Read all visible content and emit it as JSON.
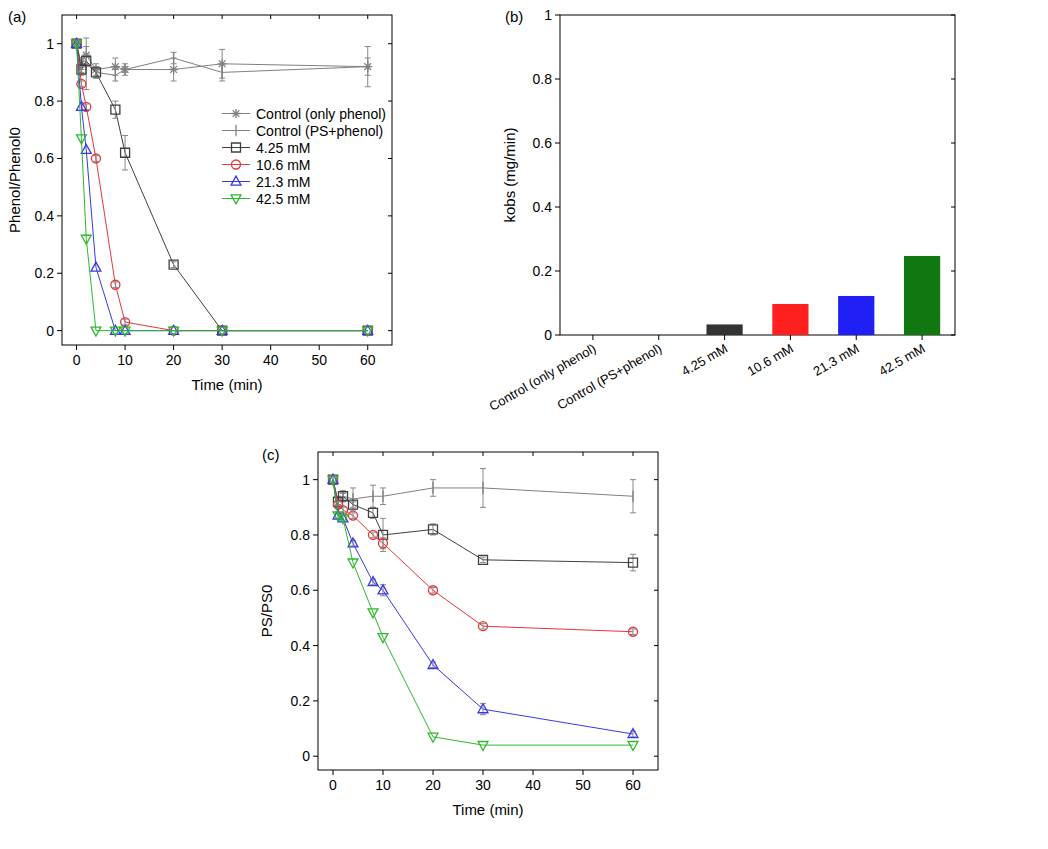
{
  "chart_data": [
    {
      "type": "line",
      "title": "(a)",
      "xlabel": "Time (min)",
      "ylabel": "Phenol/Phenol0",
      "x": [
        0,
        1,
        2,
        4,
        8,
        10,
        20,
        30,
        60
      ],
      "xlim": [
        -3,
        65
      ],
      "xticks": [
        0,
        10,
        20,
        30,
        40,
        50,
        60
      ],
      "ylim": [
        -0.05,
        1.1
      ],
      "yticks": [
        0,
        0.2,
        0.4,
        0.6,
        0.8,
        1
      ],
      "legend": "upper right",
      "series": [
        {
          "name": "Control (only phenol)",
          "color": "#808080",
          "marker": "star",
          "values": [
            1,
            0.93,
            0.96,
            0.91,
            0.92,
            0.91,
            0.91,
            0.93,
            0.92
          ],
          "errors": [
            0,
            0.02,
            0.03,
            0.02,
            0.03,
            0.02,
            0.04,
            0.05,
            0.07
          ]
        },
        {
          "name": "Control (PS+phenol)",
          "color": "#808080",
          "marker": "vline",
          "values": [
            1,
            0.91,
            0.93,
            0.9,
            0.89,
            0.91,
            0.95,
            0.9,
            0.92
          ],
          "errors": [
            0,
            0.02,
            0.09,
            0.02,
            0.02,
            0.01,
            0.02,
            0.03,
            0.03
          ]
        },
        {
          "name": "4.25 mM",
          "color": "#404040",
          "marker": "square",
          "values": [
            1,
            0.91,
            0.94,
            0.9,
            0.77,
            0.62,
            0.23,
            0,
            0
          ],
          "errors": [
            0,
            0.01,
            0.02,
            0.02,
            0.03,
            0.06,
            0.01,
            0,
            0
          ]
        },
        {
          "name": "10.6 mM",
          "color": "#e5383b",
          "marker": "circle",
          "values": [
            1,
            0.86,
            0.78,
            0.6,
            0.16,
            0.03,
            0,
            0,
            0
          ],
          "errors": [
            0,
            0.01,
            0.01,
            0.01,
            0.01,
            0.01,
            0,
            0,
            0
          ]
        },
        {
          "name": "21.3 mM",
          "color": "#3838e8",
          "marker": "triangle-up",
          "values": [
            1,
            0.78,
            0.63,
            0.22,
            0,
            0,
            0,
            0,
            0
          ]
        },
        {
          "name": "42.5 mM",
          "color": "#2db92d",
          "marker": "triangle-down",
          "values": [
            1,
            0.67,
            0.32,
            0,
            0,
            0,
            0,
            0,
            0
          ]
        }
      ]
    },
    {
      "type": "bar",
      "title": "(b)",
      "ylabel": "kobs (mg/min)",
      "categories": [
        "Control (only phenol)",
        "Control (PS+phenol)",
        "4.25 mM",
        "10.6 mM",
        "21.3 mM",
        "42.5 mM"
      ],
      "values": [
        0,
        0,
        0.033,
        0.097,
        0.122,
        0.247
      ],
      "colors": [
        "#808080",
        "#808080",
        "#333333",
        "#ff1f1f",
        "#1f1ff5",
        "#117711"
      ],
      "ylim": [
        0,
        1
      ],
      "yticks": [
        0,
        0.2,
        0.4,
        0.6,
        0.8,
        1
      ]
    },
    {
      "type": "line",
      "title": "(c)",
      "xlabel": "Time (min)",
      "ylabel": "PS/PS0",
      "x": [
        0,
        1,
        2,
        4,
        8,
        10,
        20,
        30,
        60
      ],
      "xlim": [
        -3,
        65
      ],
      "xticks": [
        0,
        10,
        20,
        30,
        40,
        50,
        60
      ],
      "ylim": [
        -0.05,
        1.1
      ],
      "yticks": [
        0,
        0.2,
        0.4,
        0.6,
        0.8,
        1
      ],
      "series": [
        {
          "color": "#808080",
          "marker": "vline",
          "values": [
            1,
            0.92,
            0.94,
            0.93,
            0.94,
            0.94,
            0.97,
            0.97,
            0.94
          ],
          "errors": [
            0,
            0.02,
            0.02,
            0.04,
            0.04,
            0.03,
            0.03,
            0.07,
            0.06
          ]
        },
        {
          "color": "#404040",
          "marker": "square",
          "values": [
            1,
            0.92,
            0.94,
            0.91,
            0.88,
            0.8,
            0.82,
            0.71,
            0.7
          ],
          "errors": [
            0,
            0.01,
            0.01,
            0.01,
            0.02,
            0.06,
            0.02,
            0.01,
            0.03
          ]
        },
        {
          "color": "#e5383b",
          "marker": "circle",
          "values": [
            1,
            0.91,
            0.89,
            0.87,
            0.8,
            0.77,
            0.6,
            0.47,
            0.45
          ],
          "errors": [
            0,
            0.01,
            0.01,
            0.01,
            0.01,
            0.02,
            0.01,
            0.01,
            0.01
          ]
        },
        {
          "color": "#3838e8",
          "marker": "triangle-up",
          "values": [
            1,
            0.87,
            0.86,
            0.77,
            0.63,
            0.6,
            0.33,
            0.17,
            0.08
          ],
          "errors": [
            0,
            0.01,
            0.01,
            0.01,
            0.01,
            0.02,
            0.01,
            0.02,
            0.01
          ]
        },
        {
          "color": "#2db92d",
          "marker": "triangle-down",
          "values": [
            1,
            0.87,
            0.86,
            0.7,
            0.52,
            0.43,
            0.07,
            0.04,
            0.04
          ]
        }
      ]
    }
  ]
}
